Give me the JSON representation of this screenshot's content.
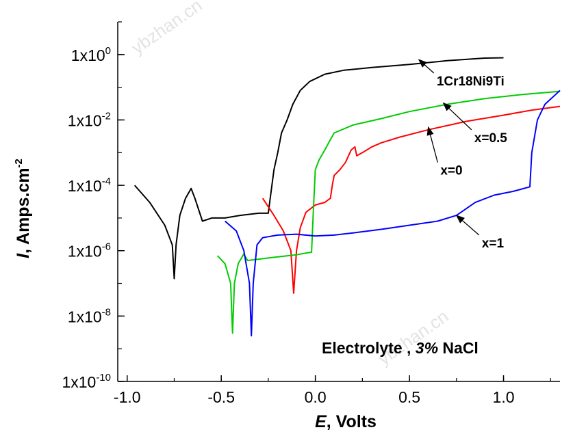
{
  "chart_data": {
    "type": "line",
    "title": "",
    "xlabel": {
      "symbol": "E",
      "text": ",  Volts"
    },
    "ylabel": {
      "symbol": "I",
      "text": ",  Amps.cm",
      "exponent": "-2"
    },
    "x_scale": "linear",
    "y_scale": "log",
    "xlim": [
      -1.05,
      1.3
    ],
    "ylim": [
      1e-10,
      10
    ],
    "x_ticks": [
      {
        "value": -1.0,
        "label": "-1.0"
      },
      {
        "value": -0.5,
        "label": "-0.5"
      },
      {
        "value": 0.0,
        "label": "0.0"
      },
      {
        "value": 0.5,
        "label": "0.5"
      },
      {
        "value": 1.0,
        "label": "1.0"
      }
    ],
    "y_ticks": [
      {
        "value": 1.0,
        "base": "1x10",
        "exp": "0"
      },
      {
        "value": 0.01,
        "base": "1x10",
        "exp": "-2"
      },
      {
        "value": 0.0001,
        "base": "1x10",
        "exp": "-4"
      },
      {
        "value": 1e-06,
        "base": "1x10",
        "exp": "-6"
      },
      {
        "value": 1e-08,
        "base": "1x10",
        "exp": "-8"
      },
      {
        "value": 1e-10,
        "base": "1x10",
        "exp": "-10"
      }
    ],
    "grid": false,
    "legend": "none",
    "series": [
      {
        "name": "1Cr18Ni9Ti",
        "color": "#000000",
        "points": [
          [
            -0.96,
            0.0001
          ],
          [
            -0.88,
            3e-05
          ],
          [
            -0.8,
            6e-06
          ],
          [
            -0.76,
            1.5e-06
          ],
          [
            -0.75,
            1.4e-07
          ],
          [
            -0.74,
            1.5e-06
          ],
          [
            -0.72,
            1.2e-05
          ],
          [
            -0.69,
            4e-05
          ],
          [
            -0.66,
            8e-05
          ],
          [
            -0.64,
            4e-05
          ],
          [
            -0.6,
            8e-06
          ],
          [
            -0.55,
            1e-05
          ],
          [
            -0.48,
            1e-05
          ],
          [
            -0.4,
            1.2e-05
          ],
          [
            -0.3,
            1.4e-05
          ],
          [
            -0.25,
            1.4e-05
          ],
          [
            -0.24,
            4e-05
          ],
          [
            -0.22,
            0.0003
          ],
          [
            -0.2,
            0.001
          ],
          [
            -0.18,
            0.004
          ],
          [
            -0.15,
            0.01
          ],
          [
            -0.12,
            0.03
          ],
          [
            -0.08,
            0.08
          ],
          [
            -0.03,
            0.15
          ],
          [
            0.05,
            0.25
          ],
          [
            0.15,
            0.33
          ],
          [
            0.3,
            0.4
          ],
          [
            0.5,
            0.5
          ],
          [
            0.7,
            0.65
          ],
          [
            0.9,
            0.78
          ],
          [
            1.0,
            0.8
          ]
        ]
      },
      {
        "name": "x=0",
        "color": "#ff0000",
        "points": [
          [
            -0.28,
            4e-05
          ],
          [
            -0.22,
            1.2e-05
          ],
          [
            -0.17,
            4e-06
          ],
          [
            -0.13,
            1e-06
          ],
          [
            -0.115,
            5e-08
          ],
          [
            -0.1,
            1e-06
          ],
          [
            -0.08,
            5e-06
          ],
          [
            -0.05,
            1.5e-05
          ],
          [
            0.0,
            2.5e-05
          ],
          [
            0.05,
            3e-05
          ],
          [
            0.08,
            4e-05
          ],
          [
            0.09,
            0.0001
          ],
          [
            0.1,
            0.0002
          ],
          [
            0.13,
            0.0003
          ],
          [
            0.16,
            0.0005
          ],
          [
            0.19,
            0.0012
          ],
          [
            0.21,
            0.0015
          ],
          [
            0.22,
            0.0008
          ],
          [
            0.25,
            0.001
          ],
          [
            0.3,
            0.0015
          ],
          [
            0.35,
            0.002
          ],
          [
            0.45,
            0.003
          ],
          [
            0.6,
            0.005
          ],
          [
            0.8,
            0.009
          ],
          [
            1.0,
            0.014
          ],
          [
            1.15,
            0.02
          ],
          [
            1.3,
            0.026
          ]
        ]
      },
      {
        "name": "x=0.5",
        "color": "#00cc00",
        "points": [
          [
            -0.52,
            7e-07
          ],
          [
            -0.48,
            4e-07
          ],
          [
            -0.45,
            1e-07
          ],
          [
            -0.44,
            3e-09
          ],
          [
            -0.43,
            1e-07
          ],
          [
            -0.41,
            4e-07
          ],
          [
            -0.38,
            8e-07
          ],
          [
            -0.36,
            5e-07
          ],
          [
            -0.3,
            5.5e-07
          ],
          [
            -0.2,
            6.5e-07
          ],
          [
            -0.1,
            7.5e-07
          ],
          [
            -0.02,
            9e-07
          ],
          [
            -0.01,
            2e-05
          ],
          [
            0.0,
            0.0003
          ],
          [
            0.02,
            0.0006
          ],
          [
            0.05,
            0.0012
          ],
          [
            0.08,
            0.0025
          ],
          [
            0.1,
            0.004
          ],
          [
            0.2,
            0.007
          ],
          [
            0.35,
            0.011
          ],
          [
            0.5,
            0.018
          ],
          [
            0.7,
            0.03
          ],
          [
            0.9,
            0.045
          ],
          [
            1.1,
            0.06
          ],
          [
            1.3,
            0.075
          ]
        ]
      },
      {
        "name": "x=1",
        "color": "#0000ff",
        "points": [
          [
            -0.48,
            8e-06
          ],
          [
            -0.42,
            4e-06
          ],
          [
            -0.38,
            1e-06
          ],
          [
            -0.35,
            1e-07
          ],
          [
            -0.34,
            2.5e-09
          ],
          [
            -0.33,
            1e-07
          ],
          [
            -0.31,
            1.5e-06
          ],
          [
            -0.28,
            2.5e-06
          ],
          [
            -0.2,
            3e-06
          ],
          [
            -0.1,
            3.2e-06
          ],
          [
            0.0,
            2.8e-06
          ],
          [
            0.1,
            3e-06
          ],
          [
            0.2,
            3.5e-06
          ],
          [
            0.35,
            4.5e-06
          ],
          [
            0.5,
            6e-06
          ],
          [
            0.65,
            8e-06
          ],
          [
            0.75,
            1.2e-05
          ],
          [
            0.85,
            3e-05
          ],
          [
            0.95,
            5e-05
          ],
          [
            1.05,
            6.5e-05
          ],
          [
            1.14,
            9e-05
          ],
          [
            1.15,
            0.001
          ],
          [
            1.18,
            0.01
          ],
          [
            1.22,
            0.03
          ],
          [
            1.3,
            0.08
          ]
        ]
      }
    ],
    "annotations": [
      {
        "text": "1Cr18Ni9Ti",
        "target": [
          0.55,
          0.7
        ],
        "label_at": [
          0.63,
          0.27
        ]
      },
      {
        "text": "x=0.5",
        "target": [
          0.68,
          0.033
        ],
        "label_at": [
          0.83,
          0.005
        ]
      },
      {
        "text": "x=0",
        "target": [
          0.6,
          0.006
        ],
        "label_at": [
          0.65,
          0.0005
        ]
      },
      {
        "text": "x=1",
        "target": [
          0.75,
          1.2e-05
        ],
        "label_at": [
          0.87,
          3e-06
        ]
      }
    ],
    "note": {
      "prefix": "Electrolyte ,  ",
      "italic": "3%",
      "suffix": " NaCl"
    }
  },
  "watermark": "ybzhan.cn"
}
